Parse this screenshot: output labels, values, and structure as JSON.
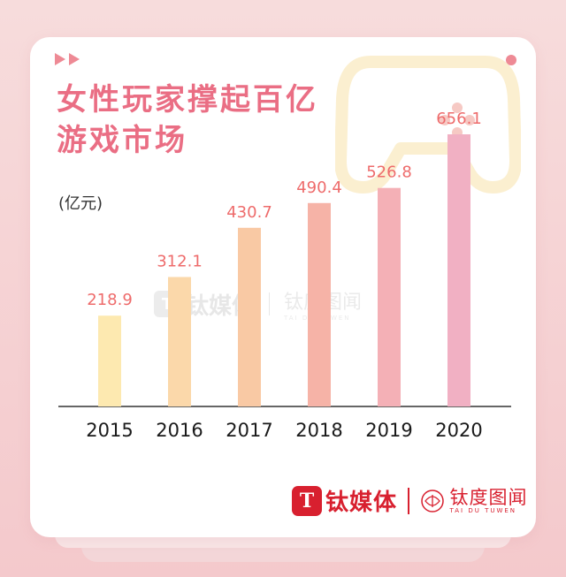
{
  "title_lines": [
    "女性玩家撑起百亿",
    "游戏市场"
  ],
  "watermark": {
    "logo_letter": "T",
    "brand_name": "钛媒体",
    "secondary_name": "钛度图闻",
    "secondary_sub": "TAI DU TUWEN"
  },
  "footer": {
    "logo_letter": "T",
    "brand_name": "钛媒体",
    "secondary_name": "钛度图闻",
    "secondary_sub": "TAI DU TUWEN"
  },
  "chart_data": {
    "type": "bar",
    "title": "女性玩家撑起百亿游戏市场",
    "ylabel": "(亿元)",
    "xlabel": "",
    "categories": [
      "2015",
      "2016",
      "2017",
      "2018",
      "2019",
      "2020"
    ],
    "values": [
      218.9,
      312.1,
      430.7,
      490.4,
      526.8,
      656.1
    ],
    "value_labels": [
      "218.9",
      "312.1",
      "430.7",
      "490.4",
      "526.8",
      "656.1"
    ],
    "ylim": [
      0,
      720
    ],
    "grid": false,
    "legend": "none",
    "colors": [
      "#fde9b0",
      "#fbd8aa",
      "#f9c9a4",
      "#f6b3a7",
      "#f4b0b6",
      "#f1b0c3"
    ],
    "label_color": "#ee6b6b"
  },
  "accent_color": "#ea6e84",
  "brand_color": "#d8202f"
}
